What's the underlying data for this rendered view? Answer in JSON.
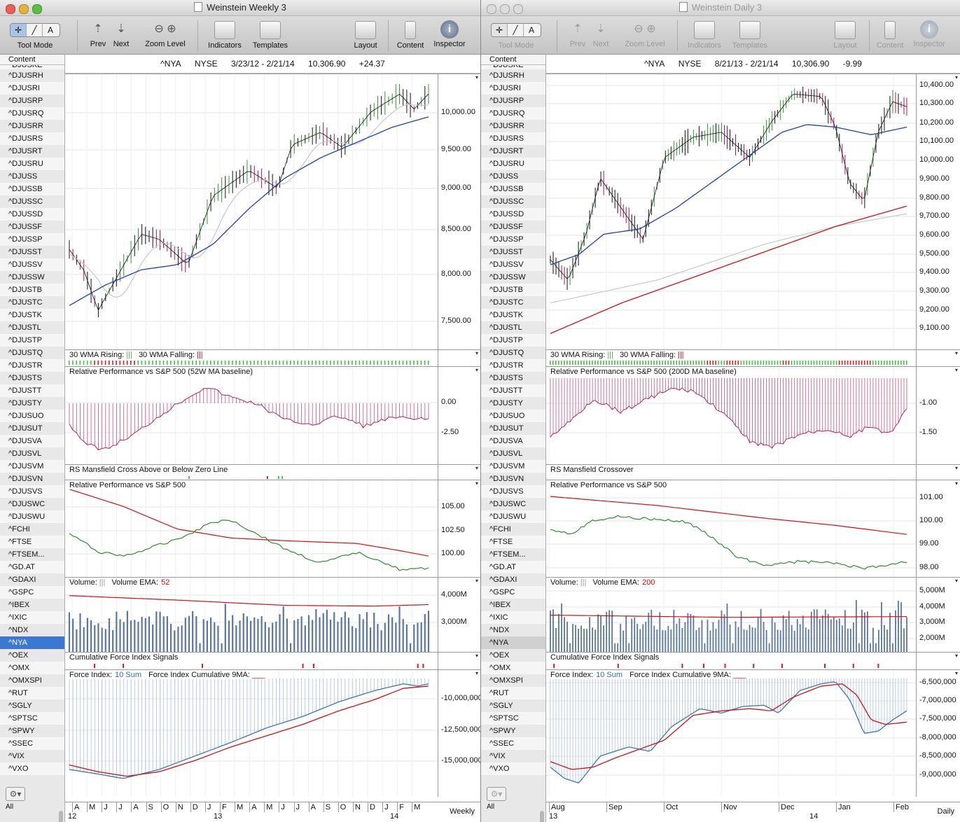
{
  "colors": {
    "blue_ma": "#1f3fb5",
    "gray_ma": "#c8c8c8",
    "red": "#d01010",
    "green": "#2e8b2e",
    "maroon": "#b0245c",
    "volume": "#5b789c",
    "fi_blue": "#3c74b8"
  },
  "left": {
    "title": "Weinstein Weekly 3",
    "toolbar": {
      "tool_mode": "Tool Mode",
      "prev": "Prev",
      "next": "Next",
      "zoom_level": "Zoom Level",
      "indicators": "Indicators",
      "templates": "Templates",
      "layout": "Layout",
      "content": "Content",
      "inspector": "Inspector"
    },
    "header": {
      "symbol": "^NYA",
      "exchange": "NYSE",
      "range": "3/23/12 - 2/21/14",
      "last": "10,306.90",
      "change": "+24.37"
    },
    "price_ticks": [
      "10,000.00",
      "9,500.00",
      "9,000.00",
      "8,500.00",
      "8,000.00",
      "7,500.00"
    ],
    "wma_label": {
      "rising": "30 WMA Rising:",
      "falling": "30 WMA Falling:"
    },
    "rp_label": "Relative Performance vs S&P 500 (52W MA baseline)",
    "rp_ticks": [
      "0.00",
      "-2.50"
    ],
    "rsm_label": "RS Mansfield Cross Above or Below Zero Line",
    "rps_label": "Relative Performance vs S&P 500",
    "rps_ticks": [
      "105.00",
      "102.50",
      "100.00"
    ],
    "vol_label": "Volume:",
    "vol_ema_label": "Volume EMA:",
    "vol_ema_value": "52",
    "vol_ticks": [
      "4,000M",
      "3,000M"
    ],
    "cfi_label": "Cumulative Force Index Signals",
    "fi_label": "Force Index:",
    "fi_sum": "10 Sum",
    "fi_cum_label": "Force Index Cumulative 9MA:",
    "fi_ticks": [
      "-10,000,000",
      "-12,500,000",
      "-15,000,000"
    ],
    "months": [
      "A",
      "M",
      "J",
      "J",
      "A",
      "S",
      "O",
      "N",
      "D",
      "J",
      "F",
      "M",
      "A",
      "M",
      "J",
      "J",
      "A",
      "S",
      "O",
      "N",
      "D",
      "J",
      "F",
      "M"
    ],
    "years": [
      "12",
      "13",
      "14"
    ],
    "period": "Weekly"
  },
  "right": {
    "title": "Weinstein Daily 3",
    "toolbar": {
      "tool_mode": "Tool Mode",
      "prev": "Prev",
      "next": "Next",
      "zoom_level": "Zoom Level",
      "indicators": "Indicators",
      "templates": "Templates",
      "layout": "Layout",
      "content": "Content",
      "inspector": "Inspector"
    },
    "header": {
      "symbol": "^NYA",
      "exchange": "NYSE",
      "range": "8/21/13 - 2/21/14",
      "last": "10,306.90",
      "change": "-9.99"
    },
    "price_ticks": [
      "10,400.00",
      "10,300.00",
      "10,200.00",
      "10,100.00",
      "10,000.00",
      "9,900.00",
      "9,800.00",
      "9,700.00",
      "9,600.00",
      "9,500.00",
      "9,400.00",
      "9,300.00",
      "9,200.00",
      "9,100.00"
    ],
    "wma_label": {
      "rising": "30 WMA Rising:",
      "falling": "30 WMA Falling:"
    },
    "rp_label": "Relative Performance vs S&P 500 (200D MA baseline)",
    "rp_ticks": [
      "-1.00",
      "-1.50"
    ],
    "rsm_label": "RS Mansfield Crossover",
    "rps_label": "Relative Performance vs S&P 500",
    "rps_ticks": [
      "101.00",
      "100.00",
      "99.00",
      "98.00"
    ],
    "vol_label": "Volume:",
    "vol_ema_label": "Volume EMA:",
    "vol_ema_value": "200",
    "vol_ticks": [
      "5,000M",
      "4,000M",
      "3,000M",
      "2,000M"
    ],
    "cfi_label": "Cumulative Force Index Signals",
    "fi_label": "Force Index:",
    "fi_sum": "10 Sum",
    "fi_cum_label": "Force Index Cumulative 9MA:",
    "fi_ticks": [
      "-6,500,000",
      "-7,000,000",
      "-7,500,000",
      "-8,000,000",
      "-8,500,000",
      "-9,000,000"
    ],
    "months": [
      "Aug",
      "Sep",
      "Oct",
      "Nov",
      "Dec",
      "Jan",
      "Feb"
    ],
    "years": [
      "13",
      "14"
    ],
    "period": "Daily"
  },
  "sidebar": {
    "header": "Content",
    "items": [
      "^DJUSKE",
      "^DJUSRH",
      "^DJUSRI",
      "^DJUSRP",
      "^DJUSRQ",
      "^DJUSRR",
      "^DJUSRS",
      "^DJUSRT",
      "^DJUSRU",
      "^DJUSS",
      "^DJUSSB",
      "^DJUSSC",
      "^DJUSSD",
      "^DJUSSF",
      "^DJUSSP",
      "^DJUSST",
      "^DJUSSV",
      "^DJUSSW",
      "^DJUSTB",
      "^DJUSTC",
      "^DJUSTK",
      "^DJUSTL",
      "^DJUSTP",
      "^DJUSTQ",
      "^DJUSTR",
      "^DJUSTS",
      "^DJUSTT",
      "^DJUSTY",
      "^DJUSUO",
      "^DJUSUT",
      "^DJUSVA",
      "^DJUSVL",
      "^DJUSVM",
      "^DJUSVN",
      "^DJUSVS",
      "^DJUSWC",
      "^DJUSWU",
      "^FCHI",
      "^FTSE",
      "^FTSEM...",
      "^GD.AT",
      "^GDAXI",
      "^GSPC",
      "^IBEX",
      "^IXIC",
      "^NDX",
      "^NYA",
      "^OEX",
      "^OMX",
      "^OMXSPI",
      "^RUT",
      "^SGLY",
      "^SPTSC",
      "^SPWY",
      "^SSEC",
      "^VIX",
      "^VXO"
    ],
    "selected": "^NYA",
    "all_label": "All"
  }
}
